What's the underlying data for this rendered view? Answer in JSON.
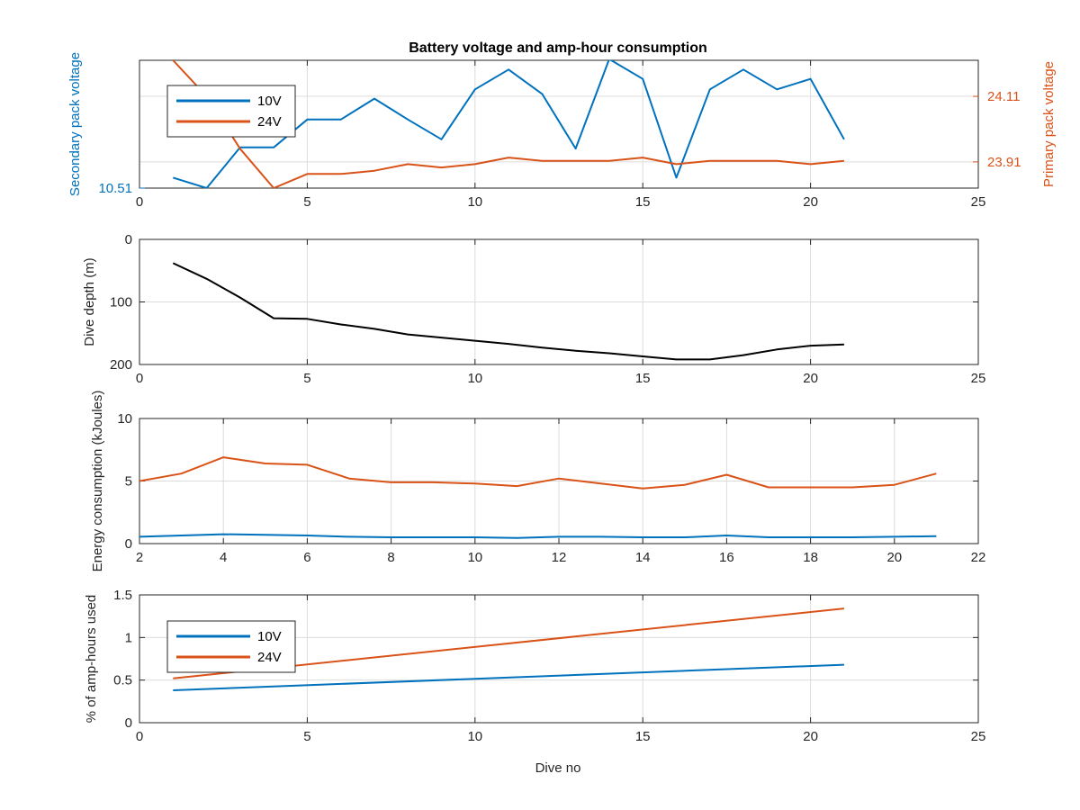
{
  "figure": {
    "title": "Battery voltage and amp-hour consumption",
    "xlabel_bottom": "Dive no"
  },
  "colors": {
    "blue": "#0072bd",
    "orange": "#d95319",
    "black": "#000000",
    "grid": "#dcdcdc",
    "axis": "#262626"
  },
  "chart_data": [
    {
      "type": "line",
      "id": "voltage",
      "title": "Battery voltage and amp-hour consumption",
      "xlim": [
        0,
        25
      ],
      "xticks": [
        0,
        5,
        10,
        15,
        20,
        25
      ],
      "grid": true,
      "left_axis": {
        "label": "Secondary pack voltage",
        "ylim": [
          10.51,
          10.62
        ],
        "ticks": [
          10.51
        ],
        "tick_labels": [
          "10.51"
        ]
      },
      "right_axis": {
        "label": "Primary pack voltage",
        "ylim": [
          23.83,
          24.22
        ],
        "ticks": [
          23.91,
          24.11
        ],
        "tick_labels": [
          "23.91",
          "24.11"
        ]
      },
      "legend": {
        "position": "top-left",
        "entries": [
          "10V",
          "24V"
        ]
      },
      "series": [
        {
          "name": "10V",
          "axis": "left",
          "x": [
            1,
            2,
            3,
            4,
            5,
            6,
            7,
            8,
            9,
            10,
            11,
            12,
            13,
            14,
            15,
            16,
            17,
            18,
            19,
            20,
            21
          ],
          "values": [
            10.519,
            10.51,
            10.545,
            10.545,
            10.569,
            10.569,
            10.587,
            10.569,
            10.552,
            10.595,
            10.612,
            10.591,
            10.544,
            10.621,
            10.604,
            10.519,
            10.595,
            10.612,
            10.595,
            10.604,
            10.552
          ]
        },
        {
          "name": "24V",
          "axis": "right",
          "x": [
            1,
            2,
            3,
            4,
            5,
            6,
            7,
            8,
            9,
            10,
            11,
            12,
            13,
            14,
            15,
            16,
            17,
            18,
            19,
            20,
            21
          ],
          "values": [
            24.22,
            24.11,
            23.95,
            23.83,
            23.873,
            23.873,
            23.883,
            23.903,
            23.893,
            23.903,
            23.923,
            23.913,
            23.913,
            23.913,
            23.923,
            23.903,
            23.913,
            23.913,
            23.913,
            23.903,
            23.913
          ]
        }
      ]
    },
    {
      "type": "line",
      "id": "depth",
      "xlim": [
        0,
        25
      ],
      "xticks": [
        0,
        5,
        10,
        15,
        20,
        25
      ],
      "ylim": [
        0,
        200
      ],
      "yreverse": true,
      "yticks": [
        0,
        100,
        200
      ],
      "tick_labels_y": [
        "0",
        "100",
        "200"
      ],
      "ylabel": "Dive depth (m)",
      "grid": true,
      "series": [
        {
          "x": [
            1,
            2,
            3,
            4,
            5,
            6,
            7,
            8,
            9,
            10,
            11,
            12,
            13,
            14,
            15,
            16,
            17,
            18,
            19,
            20,
            21
          ],
          "values": [
            38,
            63,
            93,
            126,
            127,
            136,
            143,
            152,
            157,
            162,
            167,
            173,
            178,
            182,
            187,
            192,
            192,
            185,
            176,
            170,
            168
          ]
        }
      ]
    },
    {
      "type": "line",
      "id": "energy",
      "xlim": [
        2,
        22
      ],
      "xticks": [
        2,
        4,
        6,
        8,
        10,
        12,
        14,
        16,
        18,
        20,
        22
      ],
      "ylim": [
        0,
        10
      ],
      "yticks": [
        0,
        5,
        10
      ],
      "ylabel": "Energy consumption (kJoules)",
      "grid": true,
      "series": [
        {
          "name": "24V",
          "x": [
            2,
            3,
            4,
            5,
            6,
            7,
            8,
            9,
            10,
            11,
            12,
            13,
            14,
            15,
            16,
            17,
            18,
            19,
            20,
            21
          ],
          "values": [
            5.0,
            5.6,
            6.9,
            6.4,
            6.3,
            5.2,
            4.9,
            4.9,
            4.8,
            4.6,
            5.2,
            4.8,
            4.4,
            4.7,
            5.5,
            4.5,
            4.5,
            4.5,
            4.7,
            5.6
          ]
        },
        {
          "name": "10V",
          "x": [
            2,
            3,
            4,
            5,
            6,
            7,
            8,
            9,
            10,
            11,
            12,
            13,
            14,
            15,
            16,
            17,
            18,
            19,
            20,
            21
          ],
          "values": [
            0.55,
            0.65,
            0.75,
            0.7,
            0.65,
            0.55,
            0.5,
            0.5,
            0.5,
            0.45,
            0.55,
            0.55,
            0.5,
            0.5,
            0.65,
            0.5,
            0.5,
            0.5,
            0.55,
            0.6
          ]
        }
      ]
    },
    {
      "type": "line",
      "id": "amphours",
      "xlim": [
        0,
        25
      ],
      "xticks": [
        0,
        5,
        10,
        15,
        20,
        25
      ],
      "ylim": [
        0,
        1.5
      ],
      "yticks": [
        0,
        0.5,
        1,
        1.5
      ],
      "tick_labels_y": [
        "0",
        "0.5",
        "1",
        "1.5"
      ],
      "ylabel": "% of amp-hours used",
      "xlabel": "Dive no",
      "grid": true,
      "legend": {
        "position": "top-left",
        "entries": [
          "10V",
          "24V"
        ]
      },
      "series": [
        {
          "name": "10V",
          "x": [
            1,
            21
          ],
          "values": [
            0.38,
            0.68
          ]
        },
        {
          "name": "24V",
          "x": [
            1,
            21
          ],
          "values": [
            0.52,
            1.34
          ]
        }
      ]
    }
  ]
}
